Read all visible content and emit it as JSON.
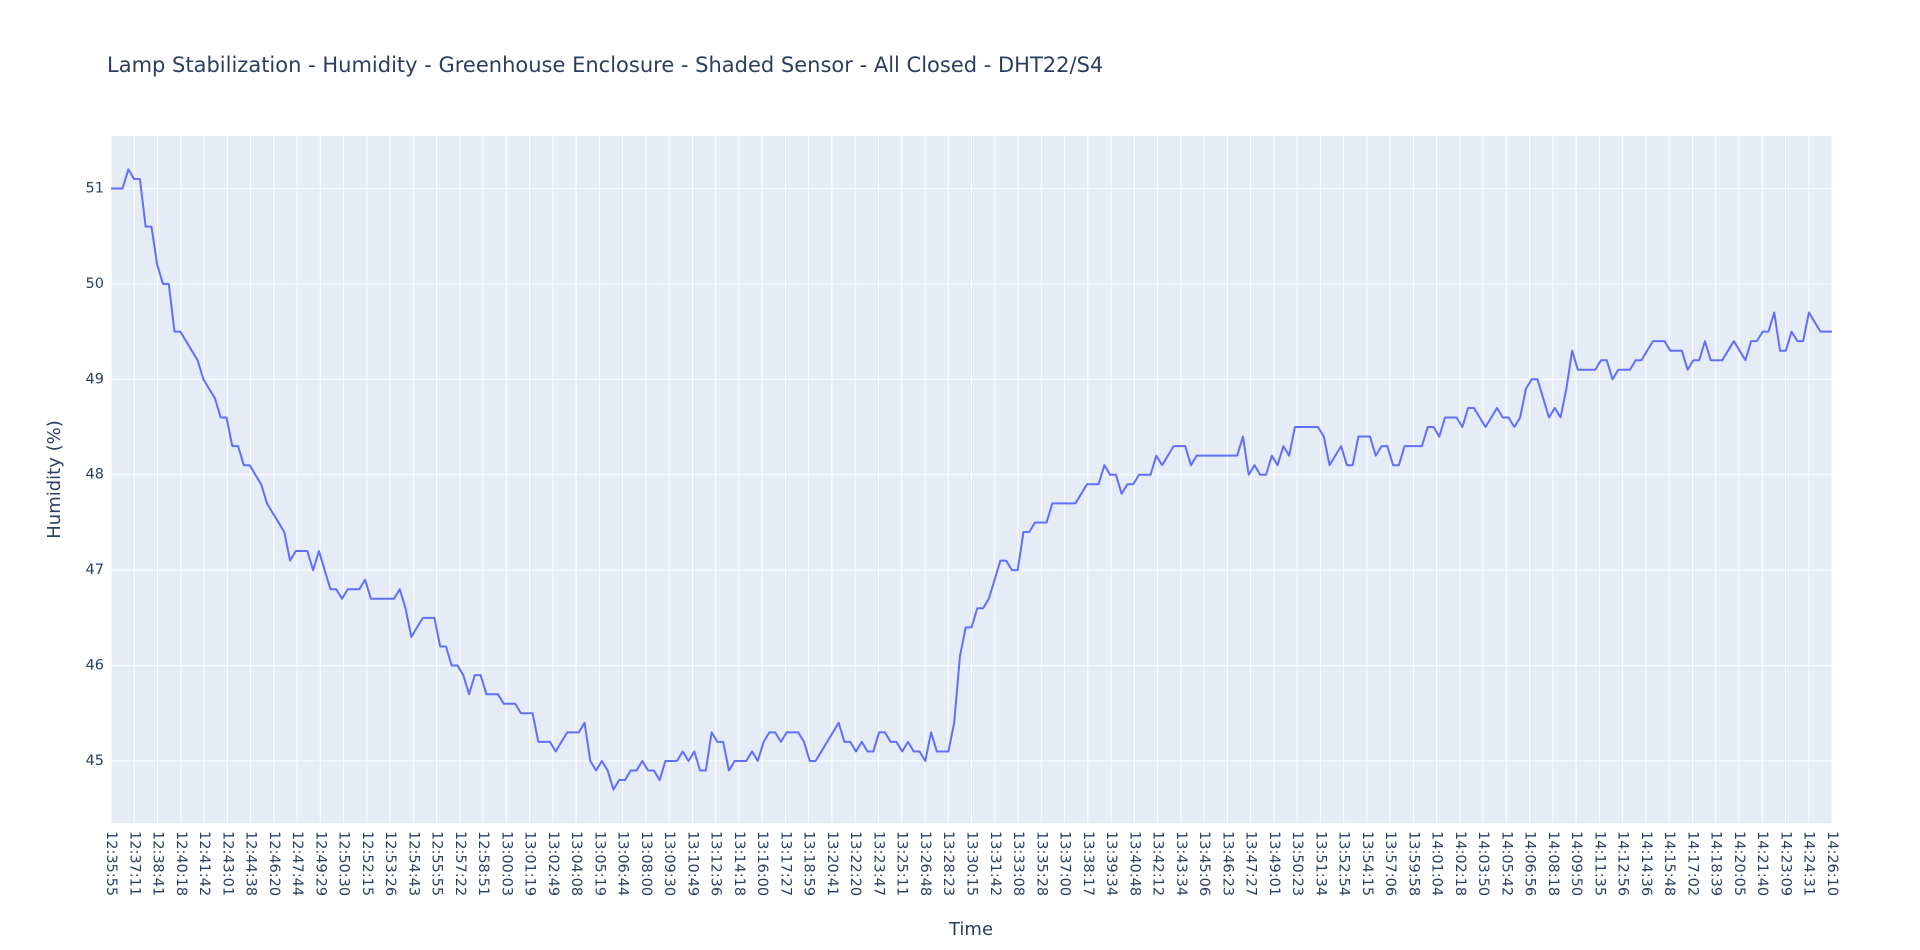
{
  "chart_data": {
    "type": "line",
    "title": "Lamp Stabilization - Humidity - Greenhouse Enclosure - Shaded Sensor - All Closed - DHT22/S4",
    "xlabel": "Time",
    "ylabel": "Humidity (%)",
    "ylim": [
      44.35,
      51.55
    ],
    "yticks": [
      45,
      46,
      47,
      48,
      49,
      50,
      51
    ],
    "grid": true,
    "plot_background": "#e5ecf6",
    "grid_color": "#ffffff",
    "text_color": "#2a3f5f",
    "series": [
      {
        "color": "#636efa",
        "y": [
          51.0,
          51.0,
          51.0,
          51.2,
          51.1,
          51.1,
          50.6,
          50.6,
          50.2,
          50.0,
          50.0,
          49.5,
          49.5,
          49.4,
          49.3,
          49.2,
          49.0,
          48.9,
          48.8,
          48.6,
          48.6,
          48.3,
          48.3,
          48.1,
          48.1,
          48.0,
          47.9,
          47.7,
          47.6,
          47.5,
          47.4,
          47.1,
          47.2,
          47.2,
          47.2,
          47.0,
          47.2,
          47.0,
          46.8,
          46.8,
          46.7,
          46.8,
          46.8,
          46.8,
          46.9,
          46.7,
          46.7,
          46.7,
          46.7,
          46.7,
          46.8,
          46.6,
          46.3,
          46.4,
          46.5,
          46.5,
          46.5,
          46.2,
          46.2,
          46.0,
          46.0,
          45.9,
          45.7,
          45.9,
          45.9,
          45.7,
          45.7,
          45.7,
          45.6,
          45.6,
          45.6,
          45.5,
          45.5,
          45.5,
          45.2,
          45.2,
          45.2,
          45.1,
          45.2,
          45.3,
          45.3,
          45.3,
          45.4,
          45.0,
          44.9,
          45.0,
          44.9,
          44.7,
          44.8,
          44.8,
          44.9,
          44.9,
          45.0,
          44.9,
          44.9,
          44.8,
          45.0,
          45.0,
          45.0,
          45.1,
          45.0,
          45.1,
          44.9,
          44.9,
          45.3,
          45.2,
          45.2,
          44.9,
          45.0,
          45.0,
          45.0,
          45.1,
          45.0,
          45.2,
          45.3,
          45.3,
          45.2,
          45.3,
          45.3,
          45.3,
          45.2,
          45.0,
          45.0,
          45.1,
          45.2,
          45.3,
          45.4,
          45.2,
          45.2,
          45.1,
          45.2,
          45.1,
          45.1,
          45.3,
          45.3,
          45.2,
          45.2,
          45.1,
          45.2,
          45.1,
          45.1,
          45.0,
          45.3,
          45.1,
          45.1,
          45.1,
          45.4,
          46.1,
          46.4,
          46.4,
          46.6,
          46.6,
          46.7,
          46.9,
          47.1,
          47.1,
          47.0,
          47.0,
          47.4,
          47.4,
          47.5,
          47.5,
          47.5,
          47.7,
          47.7,
          47.7,
          47.7,
          47.7,
          47.8,
          47.9,
          47.9,
          47.9,
          48.1,
          48.0,
          48.0,
          47.8,
          47.9,
          47.9,
          48.0,
          48.0,
          48.0,
          48.2,
          48.1,
          48.2,
          48.3,
          48.3,
          48.3,
          48.1,
          48.2,
          48.2,
          48.2,
          48.2,
          48.2,
          48.2,
          48.2,
          48.2,
          48.4,
          48.0,
          48.1,
          48.0,
          48.0,
          48.2,
          48.1,
          48.3,
          48.2,
          48.5,
          48.5,
          48.5,
          48.5,
          48.5,
          48.4,
          48.1,
          48.2,
          48.3,
          48.1,
          48.1,
          48.4,
          48.4,
          48.4,
          48.2,
          48.3,
          48.3,
          48.1,
          48.1,
          48.3,
          48.3,
          48.3,
          48.3,
          48.5,
          48.5,
          48.4,
          48.6,
          48.6,
          48.6,
          48.5,
          48.7,
          48.7,
          48.6,
          48.5,
          48.6,
          48.7,
          48.6,
          48.6,
          48.5,
          48.6,
          48.9,
          49.0,
          49.0,
          48.8,
          48.6,
          48.7,
          48.6,
          48.9,
          49.3,
          49.1,
          49.1,
          49.1,
          49.1,
          49.2,
          49.2,
          49.0,
          49.1,
          49.1,
          49.1,
          49.2,
          49.2,
          49.3,
          49.4,
          49.4,
          49.4,
          49.3,
          49.3,
          49.3,
          49.1,
          49.2,
          49.2,
          49.4,
          49.2,
          49.2,
          49.2,
          49.3,
          49.4,
          49.3,
          49.2,
          49.4,
          49.4,
          49.5,
          49.5,
          49.7,
          49.3,
          49.3,
          49.5,
          49.4,
          49.4,
          49.7,
          49.6,
          49.5,
          49.5,
          49.5
        ]
      }
    ],
    "xticks": [
      "12:35:55",
      "12:37:11",
      "12:38:41",
      "12:40:18",
      "12:41:42",
      "12:43:01",
      "12:44:38",
      "12:46:20",
      "12:47:44",
      "12:49:29",
      "12:50:30",
      "12:52:15",
      "12:53:26",
      "12:54:43",
      "12:55:55",
      "12:57:22",
      "12:58:51",
      "13:00:03",
      "13:01:19",
      "13:02:49",
      "13:04:08",
      "13:05:19",
      "13:06:44",
      "13:08:00",
      "13:09:30",
      "13:10:49",
      "13:12:36",
      "13:14:18",
      "13:16:00",
      "13:17:27",
      "13:18:59",
      "13:20:41",
      "13:22:20",
      "13:23:47",
      "13:25:11",
      "13:26:48",
      "13:28:23",
      "13:30:15",
      "13:31:42",
      "13:33:08",
      "13:35:28",
      "13:37:00",
      "13:38:17",
      "13:39:34",
      "13:40:48",
      "13:42:12",
      "13:43:34",
      "13:45:06",
      "13:46:23",
      "13:47:27",
      "13:49:01",
      "13:50:23",
      "13:51:34",
      "13:52:54",
      "13:54:15",
      "13:57:06",
      "13:59:58",
      "14:01:04",
      "14:02:18",
      "14:03:50",
      "14:05:42",
      "14:06:56",
      "14:08:18",
      "14:09:50",
      "14:11:35",
      "14:12:56",
      "14:14:36",
      "14:15:48",
      "14:17:02",
      "14:18:39",
      "14:20:05",
      "14:21:40",
      "14:23:09",
      "14:24:31",
      "14:26:10"
    ]
  }
}
